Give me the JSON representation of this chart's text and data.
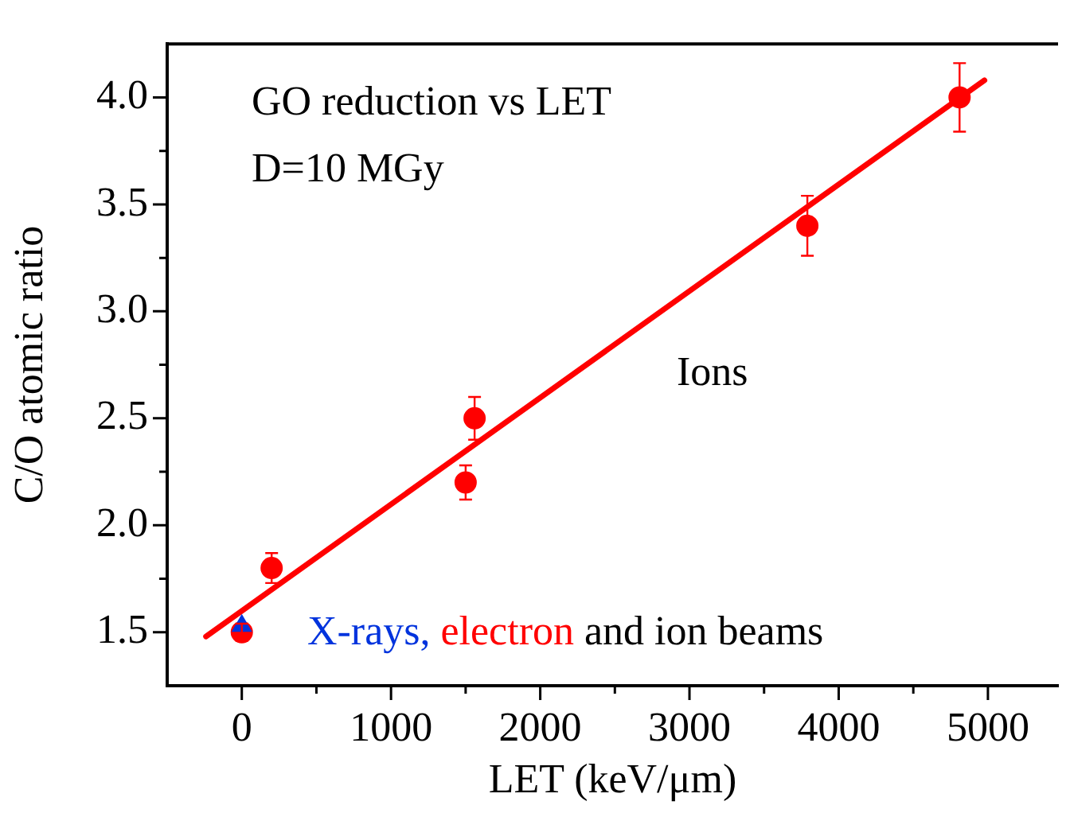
{
  "chart_data": {
    "type": "scatter",
    "xlabel": "LET (keV/μm)",
    "ylabel": "C/O atomic ratio",
    "xlim": [
      -500,
      5470
    ],
    "ylim": [
      1.25,
      4.25
    ],
    "xticks": [
      0,
      {
        "value": 500,
        "label": null
      },
      1000,
      {
        "value": 1500,
        "label": null
      },
      2000,
      {
        "value": 2500,
        "label": null
      },
      3000,
      {
        "value": 3500,
        "label": null
      },
      4000,
      {
        "value": 4500,
        "label": null
      },
      5000
    ],
    "yticks": [
      {
        "value": 1.5,
        "label": "1.5"
      },
      {
        "value": 1.75,
        "label": null
      },
      {
        "value": 2,
        "label": "2.0"
      },
      {
        "value": 2.25,
        "label": null
      },
      {
        "value": 2.5,
        "label": "2.5"
      },
      {
        "value": 2.75,
        "label": null
      },
      {
        "value": 3,
        "label": "3.0"
      },
      {
        "value": 3.25,
        "label": null
      },
      {
        "value": 3.5,
        "label": "3.5"
      },
      {
        "value": 3.75,
        "label": null
      },
      {
        "value": 4,
        "label": "4.0"
      }
    ],
    "grid": false,
    "legend": false,
    "series": [
      {
        "color": "#ff0000",
        "marker": "circle",
        "x": [
          0,
          200,
          1500,
          1560,
          3790,
          4810
        ],
        "values": [
          1.5,
          1.8,
          2.2,
          2.5,
          3.4,
          4.0
        ],
        "errors": [
          0.04,
          0.07,
          0.08,
          0.1,
          0.14,
          0.16
        ]
      },
      {
        "color": "#0033dd",
        "marker": "triangle",
        "x": [
          0
        ],
        "values": [
          1.53
        ]
      },
      {
        "type": "line",
        "color": "#ff0000",
        "marker": "none",
        "x": [
          -240,
          4977
        ],
        "values": [
          1.48,
          4.08
        ]
      }
    ],
    "annotations": [
      "GO reduction vs LET",
      "D=10 MGy",
      "Ions",
      "X-rays,",
      "electron",
      "and ion beams"
    ]
  }
}
